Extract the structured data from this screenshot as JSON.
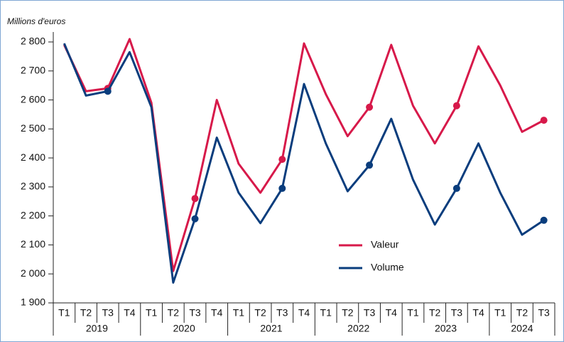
{
  "chart_data": {
    "type": "line",
    "y_axis_label": "Millions d'euros",
    "categories": [
      "T1",
      "T2",
      "T3",
      "T4",
      "T1",
      "T2",
      "T3",
      "T4",
      "T1",
      "T2",
      "T3",
      "T4",
      "T1",
      "T2",
      "T3",
      "T4",
      "T1",
      "T2",
      "T3",
      "T4",
      "T1",
      "T2",
      "T3"
    ],
    "groups": [
      {
        "label": "2019",
        "size": 4
      },
      {
        "label": "2020",
        "size": 4
      },
      {
        "label": "2021",
        "size": 4
      },
      {
        "label": "2022",
        "size": 4
      },
      {
        "label": "2023",
        "size": 4
      },
      {
        "label": "2024",
        "size": 3
      }
    ],
    "series": [
      {
        "name": "Valeur",
        "color": "#d7194a",
        "values": [
          2790,
          2630,
          2640,
          2810,
          2590,
          2010,
          2260,
          2600,
          2380,
          2280,
          2395,
          2795,
          2620,
          2475,
          2575,
          2790,
          2580,
          2450,
          2580,
          2785,
          2650,
          2490,
          2530
        ]
      },
      {
        "name": "Volume",
        "color": "#0a3d7d",
        "values": [
          2795,
          2615,
          2630,
          2765,
          2575,
          1970,
          2190,
          2470,
          2280,
          2175,
          2295,
          2655,
          2450,
          2285,
          2375,
          2535,
          2325,
          2170,
          2295,
          2450,
          2280,
          2135,
          2185
        ]
      }
    ],
    "markers_at": [
      2,
      6,
      10,
      14,
      18,
      22
    ],
    "ylim": [
      1900,
      2800
    ],
    "yticks": [
      {
        "value": 1900,
        "label": "1 900"
      },
      {
        "value": 2000,
        "label": "2 000"
      },
      {
        "value": 2100,
        "label": "2 100"
      },
      {
        "value": 2200,
        "label": "2 200"
      },
      {
        "value": 2300,
        "label": "2 300"
      },
      {
        "value": 2400,
        "label": "2 400"
      },
      {
        "value": 2500,
        "label": "2 500"
      },
      {
        "value": 2600,
        "label": "2 600"
      },
      {
        "value": 2700,
        "label": "2 700"
      },
      {
        "value": 2800,
        "label": "2 800"
      }
    ]
  }
}
